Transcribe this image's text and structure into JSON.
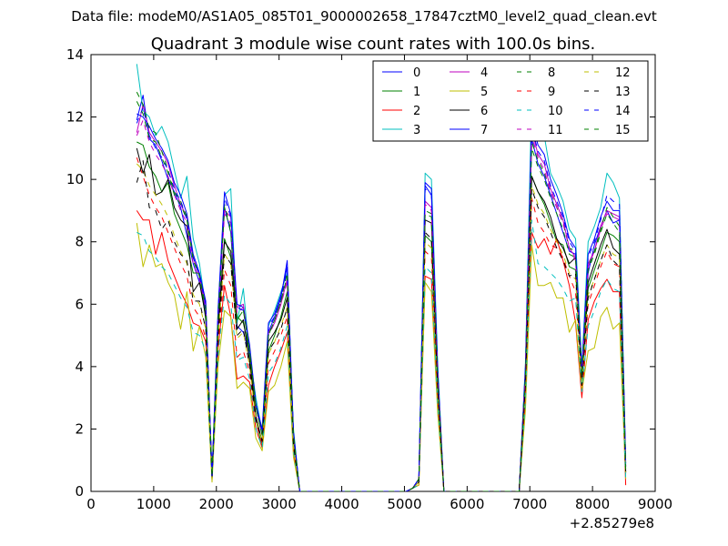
{
  "header": {
    "file_label": "Data file: modeM0/AS1A05_085T01_9000002658_17847cztM0_level2_quad_clean.evt"
  },
  "chart_data": {
    "type": "line",
    "title": "Quadrant 3 module wise count rates with 100.0s bins.",
    "xlabel": "",
    "ylabel": "",
    "x_offset_label": "+2.85279e8",
    "xlim": [
      0,
      9000
    ],
    "ylim": [
      0,
      14
    ],
    "x_ticks": [
      0,
      1000,
      2000,
      3000,
      4000,
      5000,
      6000,
      7000,
      8000,
      9000
    ],
    "y_ticks": [
      0,
      2,
      4,
      6,
      8,
      10,
      12,
      14
    ],
    "legend_placement": "top-right",
    "legend_columns": 4,
    "x": [
      730,
      830,
      930,
      1030,
      1130,
      1230,
      1330,
      1430,
      1530,
      1630,
      1730,
      1830,
      1930,
      2030,
      2130,
      2230,
      2330,
      2430,
      2530,
      2630,
      2730,
      2830,
      2930,
      3030,
      3130,
      3230,
      3330,
      4000,
      5030,
      5130,
      5230,
      5330,
      5430,
      5530,
      5630,
      6000,
      6830,
      6930,
      7030,
      7130,
      7230,
      7330,
      7430,
      7530,
      7630,
      7730,
      7830,
      7930,
      8030,
      8130,
      8230,
      8330,
      8430,
      8530
    ],
    "series": [
      {
        "name": "0",
        "color": "#0000ff",
        "dash": "solid",
        "values": [
          11.9,
          12.7,
          11.3,
          11.1,
          10.6,
          10.0,
          9.6,
          9.1,
          8.2,
          7.3,
          6.7,
          5.8,
          0.5,
          5.5,
          9.1,
          8.3,
          5.3,
          5.1,
          4.4,
          2.8,
          1.9,
          5.1,
          5.6,
          6.2,
          7.4,
          1.8,
          0.0,
          0.0,
          0.0,
          0.1,
          0.4,
          9.8,
          9.5,
          3.8,
          0.0,
          0.0,
          0.0,
          3.9,
          11.3,
          10.5,
          10.1,
          9.5,
          8.9,
          8.3,
          7.7,
          7.6,
          3.8,
          7.0,
          7.9,
          8.5,
          9.0,
          8.6,
          8.7,
          0.8
        ]
      },
      {
        "name": "1",
        "color": "#008000",
        "dash": "solid",
        "values": [
          11.2,
          11.1,
          10.4,
          10.1,
          9.6,
          9.9,
          8.9,
          8.4,
          7.9,
          7.0,
          7.0,
          5.5,
          0.4,
          5.3,
          8.1,
          7.5,
          5.6,
          5.4,
          4.5,
          2.3,
          1.4,
          4.5,
          5.0,
          5.6,
          6.4,
          1.6,
          0.0,
          0.0,
          0.0,
          0.1,
          0.3,
          8.2,
          8.0,
          3.3,
          0.0,
          0.0,
          0.0,
          3.5,
          10.1,
          9.6,
          9.2,
          8.6,
          8.0,
          7.9,
          7.2,
          7.1,
          3.5,
          6.5,
          7.1,
          7.7,
          8.3,
          8.2,
          8.0,
          0.6
        ]
      },
      {
        "name": "2",
        "color": "#ff0000",
        "dash": "solid",
        "values": [
          9.0,
          8.7,
          8.7,
          7.6,
          8.3,
          7.4,
          6.9,
          6.4,
          6.0,
          5.4,
          5.3,
          4.8,
          0.4,
          4.6,
          6.6,
          5.6,
          3.6,
          3.7,
          3.5,
          2.0,
          1.4,
          3.4,
          4.0,
          4.5,
          5.1,
          1.3,
          0.0,
          0.0,
          0.0,
          0.1,
          0.2,
          6.9,
          6.8,
          2.7,
          0.0,
          0.0,
          0.0,
          2.9,
          8.3,
          7.8,
          8.1,
          7.6,
          8.1,
          7.4,
          6.6,
          5.4,
          3.0,
          5.5,
          6.1,
          6.5,
          6.8,
          6.4,
          6.4,
          0.2
        ]
      },
      {
        "name": "3",
        "color": "#00bfbf",
        "dash": "solid",
        "values": [
          13.7,
          12.2,
          12.0,
          11.4,
          11.7,
          11.2,
          10.3,
          9.4,
          10.1,
          8.1,
          7.3,
          5.9,
          0.6,
          5.9,
          9.5,
          9.7,
          5.4,
          6.5,
          4.4,
          3.0,
          1.9,
          5.3,
          5.8,
          6.4,
          7.0,
          2.0,
          0.0,
          0.0,
          0.0,
          0.1,
          0.4,
          10.2,
          10.0,
          4.1,
          0.0,
          0.0,
          0.0,
          4.1,
          12.7,
          11.6,
          11.4,
          10.2,
          9.8,
          9.3,
          8.4,
          8.1,
          4.0,
          8.0,
          8.5,
          9.1,
          10.2,
          9.9,
          9.4,
          0.9
        ]
      },
      {
        "name": "4",
        "color": "#bf00bf",
        "dash": "solid",
        "values": [
          11.5,
          12.4,
          11.5,
          11.2,
          10.9,
          10.5,
          9.8,
          9.2,
          8.8,
          7.5,
          6.9,
          6.0,
          0.5,
          5.7,
          9.0,
          8.8,
          5.9,
          6.0,
          4.6,
          2.7,
          1.8,
          5.1,
          5.4,
          6.0,
          6.8,
          1.8,
          0.0,
          0.0,
          0.0,
          0.1,
          0.4,
          9.3,
          9.1,
          3.8,
          0.0,
          0.0,
          0.0,
          3.8,
          11.6,
          10.8,
          10.5,
          9.7,
          9.2,
          8.7,
          7.8,
          7.5,
          3.7,
          7.3,
          7.7,
          8.5,
          9.0,
          8.9,
          8.8,
          0.8
        ]
      },
      {
        "name": "5",
        "color": "#bfbf00",
        "dash": "solid",
        "values": [
          8.6,
          7.2,
          7.9,
          7.2,
          7.3,
          6.7,
          6.3,
          5.2,
          6.4,
          4.5,
          5.3,
          4.3,
          0.3,
          4.1,
          5.8,
          5.6,
          3.3,
          3.5,
          3.3,
          1.7,
          1.3,
          3.2,
          3.4,
          4.0,
          4.8,
          1.1,
          0.0,
          0.0,
          0.0,
          0.1,
          0.2,
          6.7,
          6.4,
          2.5,
          0.0,
          0.0,
          0.0,
          2.6,
          7.9,
          6.6,
          6.6,
          6.7,
          6.2,
          6.2,
          5.1,
          5.5,
          3.2,
          4.5,
          4.6,
          5.6,
          5.9,
          5.2,
          5.4,
          0.4
        ]
      },
      {
        "name": "6",
        "color": "#000000",
        "dash": "solid",
        "values": [
          11.0,
          10.2,
          10.8,
          9.5,
          9.6,
          10.0,
          9.1,
          8.7,
          8.5,
          6.4,
          6.7,
          5.6,
          0.4,
          5.3,
          8.0,
          7.7,
          5.2,
          5.5,
          4.2,
          2.4,
          1.6,
          4.8,
          5.1,
          5.5,
          6.2,
          1.6,
          0.0,
          0.0,
          0.0,
          0.1,
          0.3,
          8.7,
          8.6,
          3.4,
          0.0,
          0.0,
          0.0,
          3.6,
          10.1,
          9.6,
          9.3,
          8.8,
          8.1,
          7.8,
          7.3,
          7.5,
          3.6,
          6.7,
          7.3,
          7.9,
          8.4,
          7.8,
          7.6,
          0.6
        ]
      },
      {
        "name": "7",
        "color": "#0000ff",
        "dash": "solid",
        "values": [
          12.1,
          12.0,
          11.7,
          11.3,
          11.0,
          10.6,
          9.9,
          9.5,
          8.9,
          7.6,
          7.0,
          6.1,
          0.5,
          5.9,
          9.6,
          8.9,
          6.0,
          5.9,
          4.7,
          2.8,
          2.0,
          5.4,
          5.7,
          6.3,
          7.2,
          1.9,
          0.0,
          0.0,
          0.0,
          0.1,
          0.4,
          9.9,
          9.7,
          3.9,
          0.0,
          0.0,
          0.0,
          4.0,
          11.9,
          11.1,
          10.8,
          10.0,
          9.5,
          8.9,
          8.1,
          7.8,
          3.9,
          7.6,
          8.1,
          8.8,
          9.3,
          9.0,
          9.0,
          0.9
        ]
      },
      {
        "name": "8",
        "color": "#008000",
        "dash": "dashed",
        "values": [
          12.8,
          12.4,
          11.6,
          11.5,
          10.9,
          10.3,
          9.6,
          9.3,
          8.8,
          7.5,
          6.9,
          5.9,
          0.5,
          5.6,
          9.2,
          8.4,
          5.5,
          5.8,
          4.5,
          2.7,
          1.8,
          5.0,
          5.5,
          6.1,
          7.0,
          1.8,
          0.0,
          0.0,
          0.0,
          0.1,
          0.4,
          9.0,
          8.9,
          3.7,
          0.0,
          0.0,
          0.0,
          3.8,
          11.2,
          10.6,
          10.2,
          9.6,
          9.1,
          8.6,
          7.8,
          7.7,
          3.8,
          7.2,
          7.7,
          8.4,
          9.1,
          8.8,
          8.5,
          0.7
        ]
      },
      {
        "name": "9",
        "color": "#ff0000",
        "dash": "dashed",
        "values": [
          10.7,
          10.1,
          9.5,
          9.1,
          8.8,
          8.3,
          7.8,
          7.3,
          6.9,
          5.9,
          5.6,
          4.9,
          0.4,
          4.7,
          7.1,
          6.6,
          4.3,
          4.5,
          3.8,
          2.2,
          1.5,
          4.1,
          4.5,
          5.0,
          5.6,
          1.4,
          0.0,
          0.0,
          0.0,
          0.1,
          0.3,
          7.7,
          7.5,
          3.0,
          0.0,
          0.0,
          0.0,
          3.2,
          9.4,
          8.6,
          8.3,
          7.9,
          7.8,
          7.5,
          6.9,
          6.4,
          3.3,
          6.0,
          6.6,
          7.2,
          7.7,
          7.3,
          7.2,
          0.5
        ]
      },
      {
        "name": "10",
        "color": "#00bfbf",
        "dash": "dashed",
        "values": [
          8.3,
          8.2,
          7.7,
          7.5,
          7.2,
          7.0,
          6.6,
          6.2,
          5.9,
          5.1,
          5.0,
          4.5,
          0.4,
          4.4,
          6.3,
          6.0,
          4.2,
          4.3,
          3.6,
          2.0,
          1.4,
          3.8,
          4.1,
          4.6,
          5.3,
          1.3,
          0.0,
          0.0,
          0.0,
          0.1,
          0.2,
          7.2,
          7.0,
          2.8,
          0.0,
          0.0,
          0.0,
          2.9,
          8.7,
          7.3,
          7.2,
          7.0,
          6.8,
          6.5,
          6.1,
          6.2,
          3.2,
          5.3,
          5.8,
          6.4,
          6.8,
          6.5,
          6.4,
          0.4
        ]
      },
      {
        "name": "11",
        "color": "#bf00bf",
        "dash": "dashed",
        "values": [
          11.4,
          11.9,
          11.2,
          10.8,
          10.5,
          10.1,
          9.5,
          9.0,
          8.6,
          7.3,
          6.8,
          5.9,
          0.5,
          5.6,
          8.9,
          8.6,
          5.7,
          5.9,
          4.5,
          2.7,
          1.8,
          5.0,
          5.4,
          6.0,
          6.7,
          1.8,
          0.0,
          0.0,
          0.0,
          0.1,
          0.4,
          9.2,
          9.0,
          3.7,
          0.0,
          0.0,
          0.0,
          3.8,
          11.4,
          10.7,
          10.3,
          9.6,
          9.1,
          8.6,
          7.8,
          7.4,
          3.7,
          7.2,
          7.7,
          8.4,
          8.9,
          8.8,
          8.7,
          0.8
        ]
      },
      {
        "name": "12",
        "color": "#bfbf00",
        "dash": "dashed",
        "values": [
          10.5,
          10.3,
          9.8,
          9.5,
          9.2,
          8.8,
          8.2,
          7.7,
          7.3,
          6.3,
          6.0,
          5.2,
          0.4,
          5.0,
          7.6,
          7.3,
          4.9,
          5.1,
          4.0,
          2.3,
          1.6,
          4.4,
          4.8,
          5.3,
          5.9,
          1.5,
          0.0,
          0.0,
          0.0,
          0.1,
          0.3,
          8.0,
          7.8,
          3.2,
          0.0,
          0.0,
          0.0,
          3.3,
          9.8,
          9.2,
          8.9,
          8.4,
          8.0,
          7.6,
          7.0,
          6.8,
          3.4,
          6.3,
          6.8,
          7.4,
          7.9,
          7.6,
          7.5,
          0.6
        ]
      },
      {
        "name": "13",
        "color": "#000000",
        "dash": "dashed",
        "values": [
          9.9,
          10.6,
          9.1,
          9.0,
          8.4,
          8.7,
          8.0,
          7.6,
          7.4,
          6.1,
          6.1,
          5.2,
          0.4,
          5.0,
          7.6,
          7.3,
          5.0,
          5.2,
          4.0,
          2.3,
          1.6,
          4.5,
          4.8,
          5.2,
          5.9,
          1.5,
          0.0,
          0.0,
          0.0,
          0.1,
          0.3,
          8.3,
          8.1,
          3.3,
          0.0,
          0.0,
          0.0,
          3.4,
          9.7,
          9.1,
          8.8,
          8.3,
          7.8,
          7.4,
          6.9,
          7.0,
          3.4,
          6.2,
          6.8,
          7.4,
          7.9,
          7.4,
          7.2,
          0.6
        ]
      },
      {
        "name": "14",
        "color": "#0000ff",
        "dash": "dashed",
        "values": [
          11.8,
          12.3,
          11.4,
          11.0,
          10.7,
          10.3,
          9.7,
          9.3,
          8.7,
          7.5,
          6.9,
          6.0,
          0.5,
          5.8,
          9.4,
          8.8,
          5.9,
          5.8,
          4.6,
          2.8,
          1.9,
          5.3,
          5.6,
          6.2,
          7.1,
          1.9,
          0.0,
          0.0,
          0.0,
          0.1,
          0.4,
          9.7,
          9.5,
          3.8,
          0.0,
          0.0,
          0.0,
          3.9,
          11.7,
          10.9,
          10.6,
          9.8,
          9.3,
          8.8,
          8.0,
          7.7,
          3.8,
          7.5,
          8.0,
          8.7,
          9.5,
          9.3,
          9.2,
          0.9
        ]
      },
      {
        "name": "15",
        "color": "#008000",
        "dash": "dashed",
        "values": [
          12.5,
          12.1,
          11.3,
          11.2,
          10.7,
          10.2,
          9.5,
          9.2,
          8.7,
          7.4,
          6.9,
          5.9,
          0.5,
          5.6,
          9.1,
          8.3,
          5.5,
          5.8,
          4.5,
          2.7,
          1.8,
          5.0,
          5.5,
          6.1,
          6.9,
          1.8,
          0.0,
          0.0,
          0.0,
          0.1,
          0.4,
          8.9,
          8.8,
          3.6,
          0.0,
          0.0,
          0.0,
          3.7,
          11.0,
          10.4,
          10.0,
          9.4,
          8.9,
          8.4,
          7.6,
          7.5,
          3.7,
          7.1,
          7.6,
          8.3,
          8.9,
          8.6,
          8.3,
          0.7
        ]
      }
    ]
  }
}
